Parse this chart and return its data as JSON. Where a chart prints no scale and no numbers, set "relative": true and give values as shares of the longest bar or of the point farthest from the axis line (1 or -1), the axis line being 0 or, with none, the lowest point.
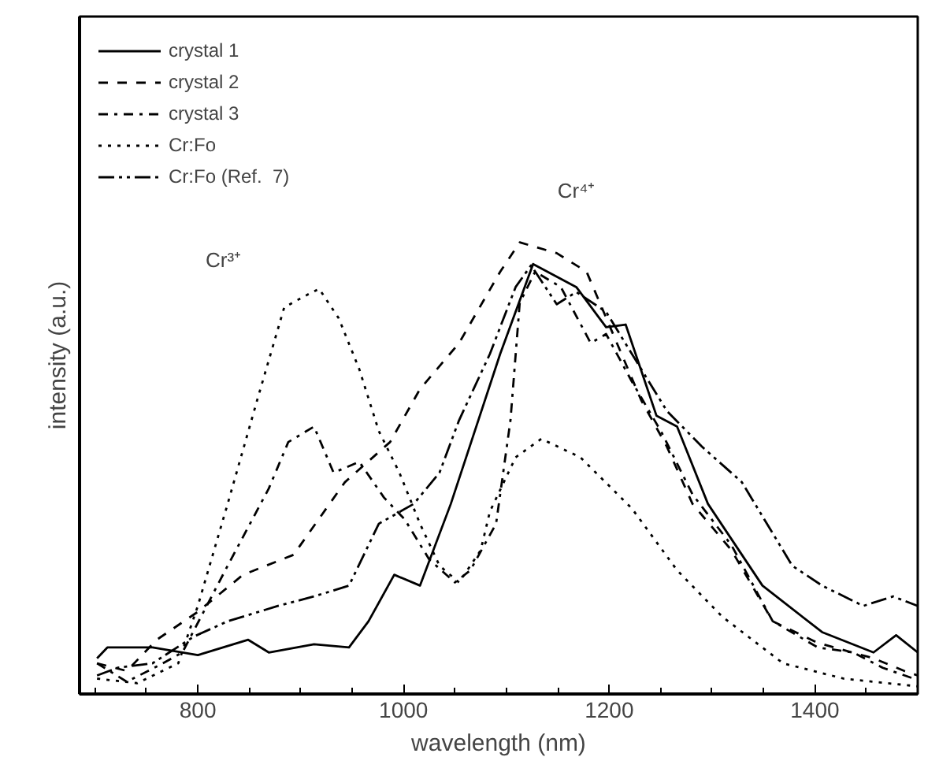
{
  "chart_data": {
    "type": "line",
    "relative": true,
    "xlabel": "wavelength (nm)",
    "ylabel": "intensity (a.u.)",
    "xlim": [
      685,
      1500
    ],
    "xticks": [
      {
        "value": 700,
        "label": null
      },
      {
        "value": 750,
        "label": null
      },
      800,
      {
        "value": 850,
        "label": null
      },
      {
        "value": 900,
        "label": null
      },
      {
        "value": 950,
        "label": null
      },
      1000,
      {
        "value": 1050,
        "label": null
      },
      {
        "value": 1100,
        "label": null
      },
      {
        "value": 1150,
        "label": null
      },
      1200,
      {
        "value": 1250,
        "label": null
      },
      {
        "value": 1300,
        "label": null
      },
      {
        "value": 1350,
        "label": null
      },
      1400,
      {
        "value": 1450,
        "label": null
      }
    ],
    "tick_labels": "x",
    "grid": false,
    "legend": "top left",
    "marker": "none",
    "annotations": [
      "Cr³⁺",
      "Cr⁴⁺"
    ],
    "series": [
      {
        "name": "crystal 1",
        "color": "#000000",
        "line_style": "solid",
        "x": [
          702,
          712,
          756,
          800,
          849,
          869,
          913,
          947,
          966,
          991,
          1016,
          1046,
          1094,
          1126,
          1168,
          1197,
          1216,
          1246,
          1266,
          1296,
          1349,
          1407,
          1457,
          1479,
          1500
        ],
        "values": [
          0.079,
          0.103,
          0.103,
          0.086,
          0.12,
          0.092,
          0.11,
          0.103,
          0.161,
          0.264,
          0.24,
          0.421,
          0.753,
          0.952,
          0.901,
          0.812,
          0.818,
          0.616,
          0.592,
          0.421,
          0.24,
          0.137,
          0.092,
          0.13,
          0.092
        ]
      },
      {
        "name": "crystal 2",
        "color": "#000000",
        "line_style": "dashed",
        "x": [
          702,
          731,
          760,
          800,
          844,
          893,
          943,
          987,
          1016,
          1054,
          1094,
          1113,
          1149,
          1178,
          1231,
          1256,
          1281,
          1319,
          1359,
          1403,
          1457,
          1487,
          1500
        ],
        "values": [
          0.068,
          0.051,
          0.12,
          0.182,
          0.264,
          0.308,
          0.469,
          0.558,
          0.675,
          0.777,
          0.935,
          1.0,
          0.976,
          0.935,
          0.651,
          0.548,
          0.421,
          0.318,
          0.161,
          0.113,
          0.079,
          0.051,
          0.041
        ]
      },
      {
        "name": "crystal 3",
        "color": "#000000",
        "line_style": "dashdot",
        "x": [
          702,
          731,
          766,
          785,
          829,
          869,
          888,
          913,
          932,
          957,
          981,
          1001,
          1025,
          1050,
          1065,
          1090,
          1104,
          1113,
          1128,
          1153,
          1182,
          1197,
          1222,
          1251,
          1281,
          1319,
          1359,
          1403,
          1437,
          1466,
          1496
        ],
        "values": [
          0.068,
          0.027,
          0.068,
          0.092,
          0.284,
          0.455,
          0.558,
          0.592,
          0.49,
          0.514,
          0.435,
          0.387,
          0.298,
          0.247,
          0.274,
          0.377,
          0.606,
          0.866,
          0.935,
          0.901,
          0.777,
          0.797,
          0.692,
          0.579,
          0.442,
          0.329,
          0.161,
          0.103,
          0.092,
          0.058,
          0.034
        ]
      },
      {
        "name": "Cr:Fo",
        "color": "#000000",
        "line_style": "dotted",
        "x": [
          702,
          741,
          781,
          800,
          829,
          859,
          884,
          903,
          918,
          937,
          957,
          976,
          996,
          1016,
          1035,
          1054,
          1075,
          1084,
          1109,
          1134,
          1172,
          1222,
          1266,
          1310,
          1369,
          1428,
          1500
        ],
        "values": [
          0.034,
          0.024,
          0.068,
          0.195,
          0.421,
          0.661,
          0.856,
          0.88,
          0.897,
          0.832,
          0.719,
          0.582,
          0.49,
          0.377,
          0.284,
          0.247,
          0.318,
          0.404,
          0.524,
          0.565,
          0.524,
          0.411,
          0.274,
          0.171,
          0.068,
          0.034,
          0.017
        ]
      },
      {
        "name": "Cr:Fo (Ref.  7)",
        "color": "#000000",
        "line_style": "dashdotdot",
        "x": [
          702,
          722,
          756,
          796,
          829,
          878,
          913,
          947,
          976,
          1010,
          1035,
          1054,
          1084,
          1109,
          1124,
          1149,
          1168,
          1197,
          1256,
          1290,
          1329,
          1378,
          1407,
          1447,
          1476,
          1500
        ],
        "values": [
          0.041,
          0.058,
          0.068,
          0.127,
          0.161,
          0.195,
          0.216,
          0.24,
          0.377,
          0.421,
          0.49,
          0.606,
          0.753,
          0.901,
          0.949,
          0.863,
          0.89,
          0.846,
          0.627,
          0.548,
          0.469,
          0.284,
          0.24,
          0.195,
          0.216,
          0.195
        ]
      }
    ]
  }
}
